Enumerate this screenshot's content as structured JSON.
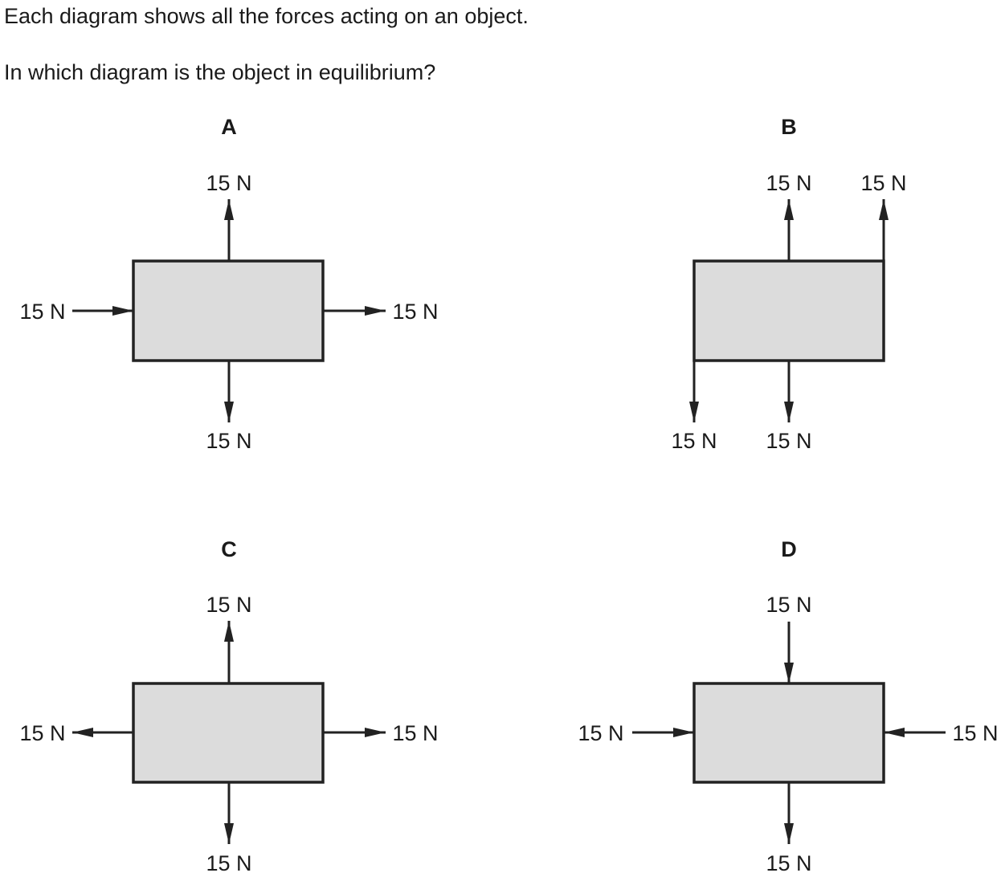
{
  "question": {
    "line1": "Each diagram shows all the forces acting on an object.",
    "line2": "In which diagram is the object in equilibrium?"
  },
  "diagrams": [
    {
      "id": "A",
      "force_label": "15 N",
      "forces": [
        "up",
        "down",
        "left-pushing-right",
        "right"
      ]
    },
    {
      "id": "B",
      "force_label": "15 N",
      "forces": [
        "up-center",
        "up-right-corner",
        "down-left-corner",
        "down-center"
      ]
    },
    {
      "id": "C",
      "force_label": "15 N",
      "forces": [
        "up",
        "down",
        "left",
        "right"
      ]
    },
    {
      "id": "D",
      "force_label": "15 N",
      "forces": [
        "down-pushing-top",
        "up-arrow-absent",
        "right-pushing-left-side",
        "left-pushing-right-side",
        "down"
      ]
    }
  ],
  "colors": {
    "box_fill": "#dcdcdc",
    "stroke": "#222222",
    "text": "#1a1a1a"
  }
}
